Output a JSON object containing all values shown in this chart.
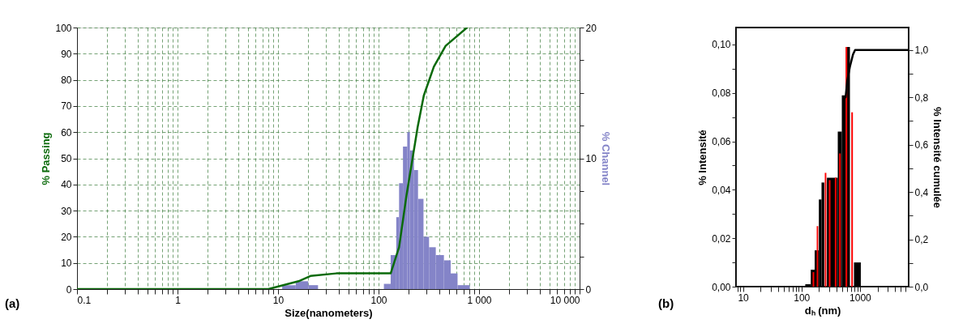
{
  "chart_data": [
    {
      "type": "line",
      "xlabel": "Size(nanometers)",
      "ylabel": "% Passing",
      "y2label": "% Channel",
      "annotations": [
        "(a)"
      ],
      "log": "x",
      "grid": true,
      "marker": "none",
      "xlim": [
        0.1,
        10000
      ],
      "xticks": [
        0.1,
        {
          "value": 0.2,
          "label": null
        },
        {
          "value": 0.3,
          "label": null
        },
        {
          "value": 0.4,
          "label": null
        },
        {
          "value": 0.5,
          "label": null
        },
        {
          "value": 0.6,
          "label": null
        },
        {
          "value": 0.7,
          "label": null
        },
        {
          "value": 0.8,
          "label": null
        },
        {
          "value": 0.9,
          "label": null
        },
        1,
        {
          "value": 2,
          "label": null
        },
        {
          "value": 3,
          "label": null
        },
        {
          "value": 4,
          "label": null
        },
        {
          "value": 5,
          "label": null
        },
        {
          "value": 6,
          "label": null
        },
        {
          "value": 7,
          "label": null
        },
        {
          "value": 8,
          "label": null
        },
        {
          "value": 9,
          "label": null
        },
        10,
        {
          "value": 20,
          "label": null
        },
        {
          "value": 30,
          "label": null
        },
        {
          "value": 40,
          "label": null
        },
        {
          "value": 50,
          "label": null
        },
        {
          "value": 60,
          "label": null
        },
        {
          "value": 70,
          "label": null
        },
        {
          "value": 80,
          "label": null
        },
        {
          "value": 90,
          "label": null
        },
        100,
        {
          "value": 200,
          "label": null
        },
        {
          "value": 300,
          "label": null
        },
        {
          "value": 400,
          "label": null
        },
        {
          "value": 500,
          "label": null
        },
        {
          "value": 600,
          "label": null
        },
        {
          "value": 700,
          "label": null
        },
        {
          "value": 800,
          "label": null
        },
        {
          "value": 900,
          "label": null
        },
        {
          "value": 1000,
          "label": "1 000"
        },
        {
          "value": 2000,
          "label": null
        },
        {
          "value": 3000,
          "label": null
        },
        {
          "value": 4000,
          "label": null
        },
        {
          "value": 5000,
          "label": null
        },
        {
          "value": 6000,
          "label": null
        },
        {
          "value": 7000,
          "label": null
        },
        {
          "value": 8000,
          "label": null
        },
        {
          "value": 9000,
          "label": null
        },
        {
          "value": 10000,
          "label": "10 000"
        }
      ],
      "ylim": [
        0,
        100
      ],
      "yticks": [
        0,
        10,
        20,
        30,
        40,
        50,
        60,
        70,
        80,
        90,
        100
      ],
      "y2lim": [
        0,
        20
      ],
      "y2ticks": [
        0,
        {
          "value": 2.5,
          "label": null
        },
        {
          "value": 5,
          "label": null
        },
        {
          "value": 7.5,
          "label": null
        },
        10,
        {
          "value": 12.5,
          "label": null
        },
        {
          "value": 15,
          "label": null
        },
        {
          "value": 17.5,
          "label": null
        },
        20
      ],
      "series": [
        {
          "type": "histogram",
          "axis": "y2",
          "color": "#8484c8",
          "bins": [
            11,
            15,
            20,
            25,
            113,
            132,
            150,
            160,
            175,
            193,
            205,
            225,
            247,
            280,
            318,
            371,
            447,
            522,
            611,
            809
          ],
          "values": [
            0.3,
            0.6,
            0.3,
            0,
            0.4,
            2.6,
            5.5,
            8.1,
            10.9,
            12,
            10.6,
            9.1,
            6.9,
            4,
            3.2,
            2.6,
            2.2,
            1.2,
            0.3
          ]
        },
        {
          "color": "#0a6a0a",
          "x": [
            0.1,
            8,
            16,
            21,
            38,
            100,
            120,
            132,
            160,
            190,
            218,
            245,
            282,
            355,
            465,
            760
          ],
          "values": [
            0,
            0,
            3,
            5,
            6,
            6,
            6,
            6,
            16,
            36,
            50,
            62,
            74,
            85,
            93,
            100
          ]
        }
      ]
    },
    {
      "type": "histogram",
      "xlabel": "dₕ (nm)",
      "ylabel": "% Intensité",
      "y2label": "% Intensité cumulée",
      "annotations": [
        "(b)"
      ],
      "log": "x",
      "grid": false,
      "marker": "none",
      "xlim": [
        7.6,
        6800
      ],
      "xticks": [
        {
          "value": 8,
          "label": null
        },
        {
          "value": 9,
          "label": null
        },
        10,
        {
          "value": 20,
          "label": null
        },
        {
          "value": 30,
          "label": null
        },
        {
          "value": 40,
          "label": null
        },
        {
          "value": 50,
          "label": null
        },
        {
          "value": 60,
          "label": null
        },
        {
          "value": 70,
          "label": null
        },
        {
          "value": 80,
          "label": null
        },
        {
          "value": 90,
          "label": null
        },
        100,
        {
          "value": 200,
          "label": null
        },
        {
          "value": 300,
          "label": null
        },
        {
          "value": 400,
          "label": null
        },
        {
          "value": 500,
          "label": null
        },
        {
          "value": 600,
          "label": null
        },
        {
          "value": 700,
          "label": null
        },
        {
          "value": 800,
          "label": null
        },
        {
          "value": 900,
          "label": null
        },
        1000,
        {
          "value": 2000,
          "label": null
        },
        {
          "value": 3000,
          "label": null
        },
        {
          "value": 4000,
          "label": null
        },
        {
          "value": 5000,
          "label": null
        },
        {
          "value": 6000,
          "label": null
        }
      ],
      "ylim": [
        0,
        0.107
      ],
      "yticks": [
        {
          "value": 0,
          "label": "0,00"
        },
        {
          "value": 0.01,
          "label": null
        },
        {
          "value": 0.02,
          "label": "0,02"
        },
        {
          "value": 0.03,
          "label": null
        },
        {
          "value": 0.04,
          "label": "0,04"
        },
        {
          "value": 0.05,
          "label": null
        },
        {
          "value": 0.06,
          "label": "0,06"
        },
        {
          "value": 0.07,
          "label": null
        },
        {
          "value": 0.08,
          "label": "0,08"
        },
        {
          "value": 0.09,
          "label": null
        },
        {
          "value": 0.1,
          "label": "0,10"
        }
      ],
      "y2lim": [
        0,
        1.095
      ],
      "y2ticks": [
        {
          "value": 0,
          "label": "0,0"
        },
        {
          "value": 0.1,
          "label": null
        },
        {
          "value": 0.2,
          "label": "0,2"
        },
        {
          "value": 0.3,
          "label": null
        },
        {
          "value": 0.4,
          "label": "0,4"
        },
        {
          "value": 0.5,
          "label": null
        },
        {
          "value": 0.6,
          "label": "0,6"
        },
        {
          "value": 0.7,
          "label": null
        },
        {
          "value": 0.8,
          "label": "0,8"
        },
        {
          "value": 0.9,
          "label": null
        },
        {
          "value": 1,
          "label": "1,0"
        }
      ],
      "series": [
        {
          "color": "#000000",
          "bins": [
            116,
            144,
            168,
            198,
            220,
            245,
            272,
            417,
            489,
            574,
            673,
            789,
            1033
          ],
          "values": [
            0.001,
            0.007,
            0.015,
            0.036,
            0.043,
            null,
            0.045,
            0.064,
            0.079,
            0.099,
            null,
            0.01
          ]
        },
        {
          "color": "#ff0000",
          "bins": [
            155,
            165,
            182,
            193,
            250,
            266,
            293,
            313,
            371,
            395,
            440,
            469,
            568,
            605,
            710,
            757
          ],
          "values": [
            0.006,
            0,
            0.025,
            0,
            0.047,
            0,
            0.044,
            0,
            0.045,
            0,
            0.055,
            0,
            0.099,
            0,
            0.072
          ]
        },
        {
          "type": "line",
          "axis": "y2",
          "color": "#000000",
          "x": [
            568,
            605,
            673,
            757,
            824,
            6800
          ],
          "values": [
            0.8,
            0.87,
            0.93,
            0.98,
            1,
            1
          ]
        }
      ]
    }
  ]
}
